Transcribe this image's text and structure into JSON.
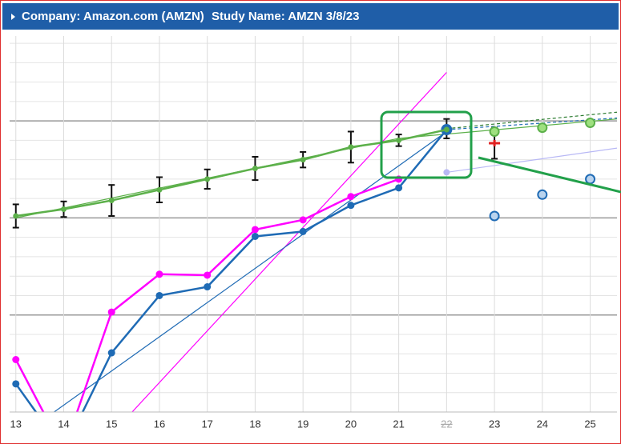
{
  "header": {
    "company": "Company: Amazon.com (AMZN)",
    "study": "Study Name: AMZN 3/8/23"
  },
  "chart_data": {
    "type": "line",
    "x": [
      13,
      14,
      15,
      16,
      17,
      18,
      19,
      20,
      21,
      22,
      23,
      24,
      25
    ],
    "xlim": [
      12.87,
      25.56
    ],
    "xticks": [
      13,
      14,
      15,
      16,
      17,
      18,
      19,
      20,
      21,
      22,
      23,
      24,
      25
    ],
    "inactive_x": 22,
    "ylim": [
      0,
      38.75
    ],
    "yticks": [
      10,
      20,
      30
    ],
    "yminor": [
      2,
      4,
      6,
      8,
      12,
      14,
      16,
      18,
      22,
      24,
      26,
      28,
      32,
      34,
      36,
      38
    ],
    "grid": true,
    "series": [
      {
        "color": "#ff00ff",
        "style": "line",
        "values": [
          5.4,
          -4,
          10.3,
          14.2,
          14.1,
          18.8,
          19.8,
          22.2,
          24.0,
          null,
          null,
          null,
          null
        ]
      },
      {
        "color": "#1f6bb5",
        "style": "line",
        "values": [
          2.9,
          -4,
          6.1,
          12.0,
          12.9,
          18.1,
          18.6,
          21.3,
          23.1,
          29.1,
          null,
          null,
          null
        ]
      },
      {
        "color": "#5cb04a",
        "style": "line",
        "values": [
          20.2,
          20.9,
          21.8,
          22.9,
          24.0,
          25.1,
          26.0,
          27.3,
          28.0,
          29.1,
          null,
          null,
          null
        ],
        "errors": [
          1.2,
          0.8,
          1.6,
          1.3,
          1.0,
          1.2,
          0.8,
          1.6,
          0.6,
          null,
          null,
          null,
          null
        ]
      },
      {
        "color": "#5cb04a",
        "style": "hollow",
        "values": [
          null,
          null,
          null,
          null,
          null,
          null,
          null,
          null,
          null,
          null,
          28.9,
          29.3,
          29.8
        ]
      },
      {
        "color": "#1f6bb5",
        "style": "hollow",
        "values": [
          null,
          null,
          null,
          null,
          null,
          null,
          null,
          null,
          null,
          null,
          20.2,
          22.4,
          24.0
        ]
      },
      {
        "color": "#b8b8f5",
        "style": "dot",
        "values": [
          null,
          null,
          null,
          null,
          null,
          null,
          null,
          null,
          null,
          24.7,
          null,
          null,
          null
        ]
      },
      {
        "color": "#e02020",
        "style": "cross",
        "values": [
          null,
          null,
          null,
          null,
          null,
          null,
          null,
          null,
          null,
          null,
          27.7,
          null,
          null
        ]
      }
    ],
    "error_bars": [
      {
        "x": 22,
        "value": 29.2,
        "error": 1.0
      },
      {
        "x": 23,
        "value": 27.7,
        "error": 1.6
      }
    ],
    "lines": [
      {
        "color": "#ff00ff",
        "dash": false,
        "x": [
          15.43,
          22
        ],
        "values": [
          0,
          35.0
        ]
      },
      {
        "color": "#1f6bb5",
        "dash": false,
        "x": [
          13.8,
          22
        ],
        "values": [
          0,
          28.9
        ]
      },
      {
        "color": "#5cb04a",
        "dash": false,
        "x": [
          13,
          17,
          21,
          25.56
        ],
        "values": [
          20.0,
          24.1,
          28.2,
          30.2
        ]
      },
      {
        "color": "#2e7d32",
        "dash": true,
        "x": [
          22,
          25.56
        ],
        "values": [
          29.2,
          30.9
        ]
      },
      {
        "color": "#1f6bb5",
        "dash": true,
        "x": [
          22,
          25.56
        ],
        "values": [
          29.1,
          30.3
        ]
      },
      {
        "color": "#b8b8f5",
        "dash": false,
        "x": [
          22,
          25.56
        ],
        "values": [
          24.7,
          27.2
        ]
      }
    ]
  }
}
